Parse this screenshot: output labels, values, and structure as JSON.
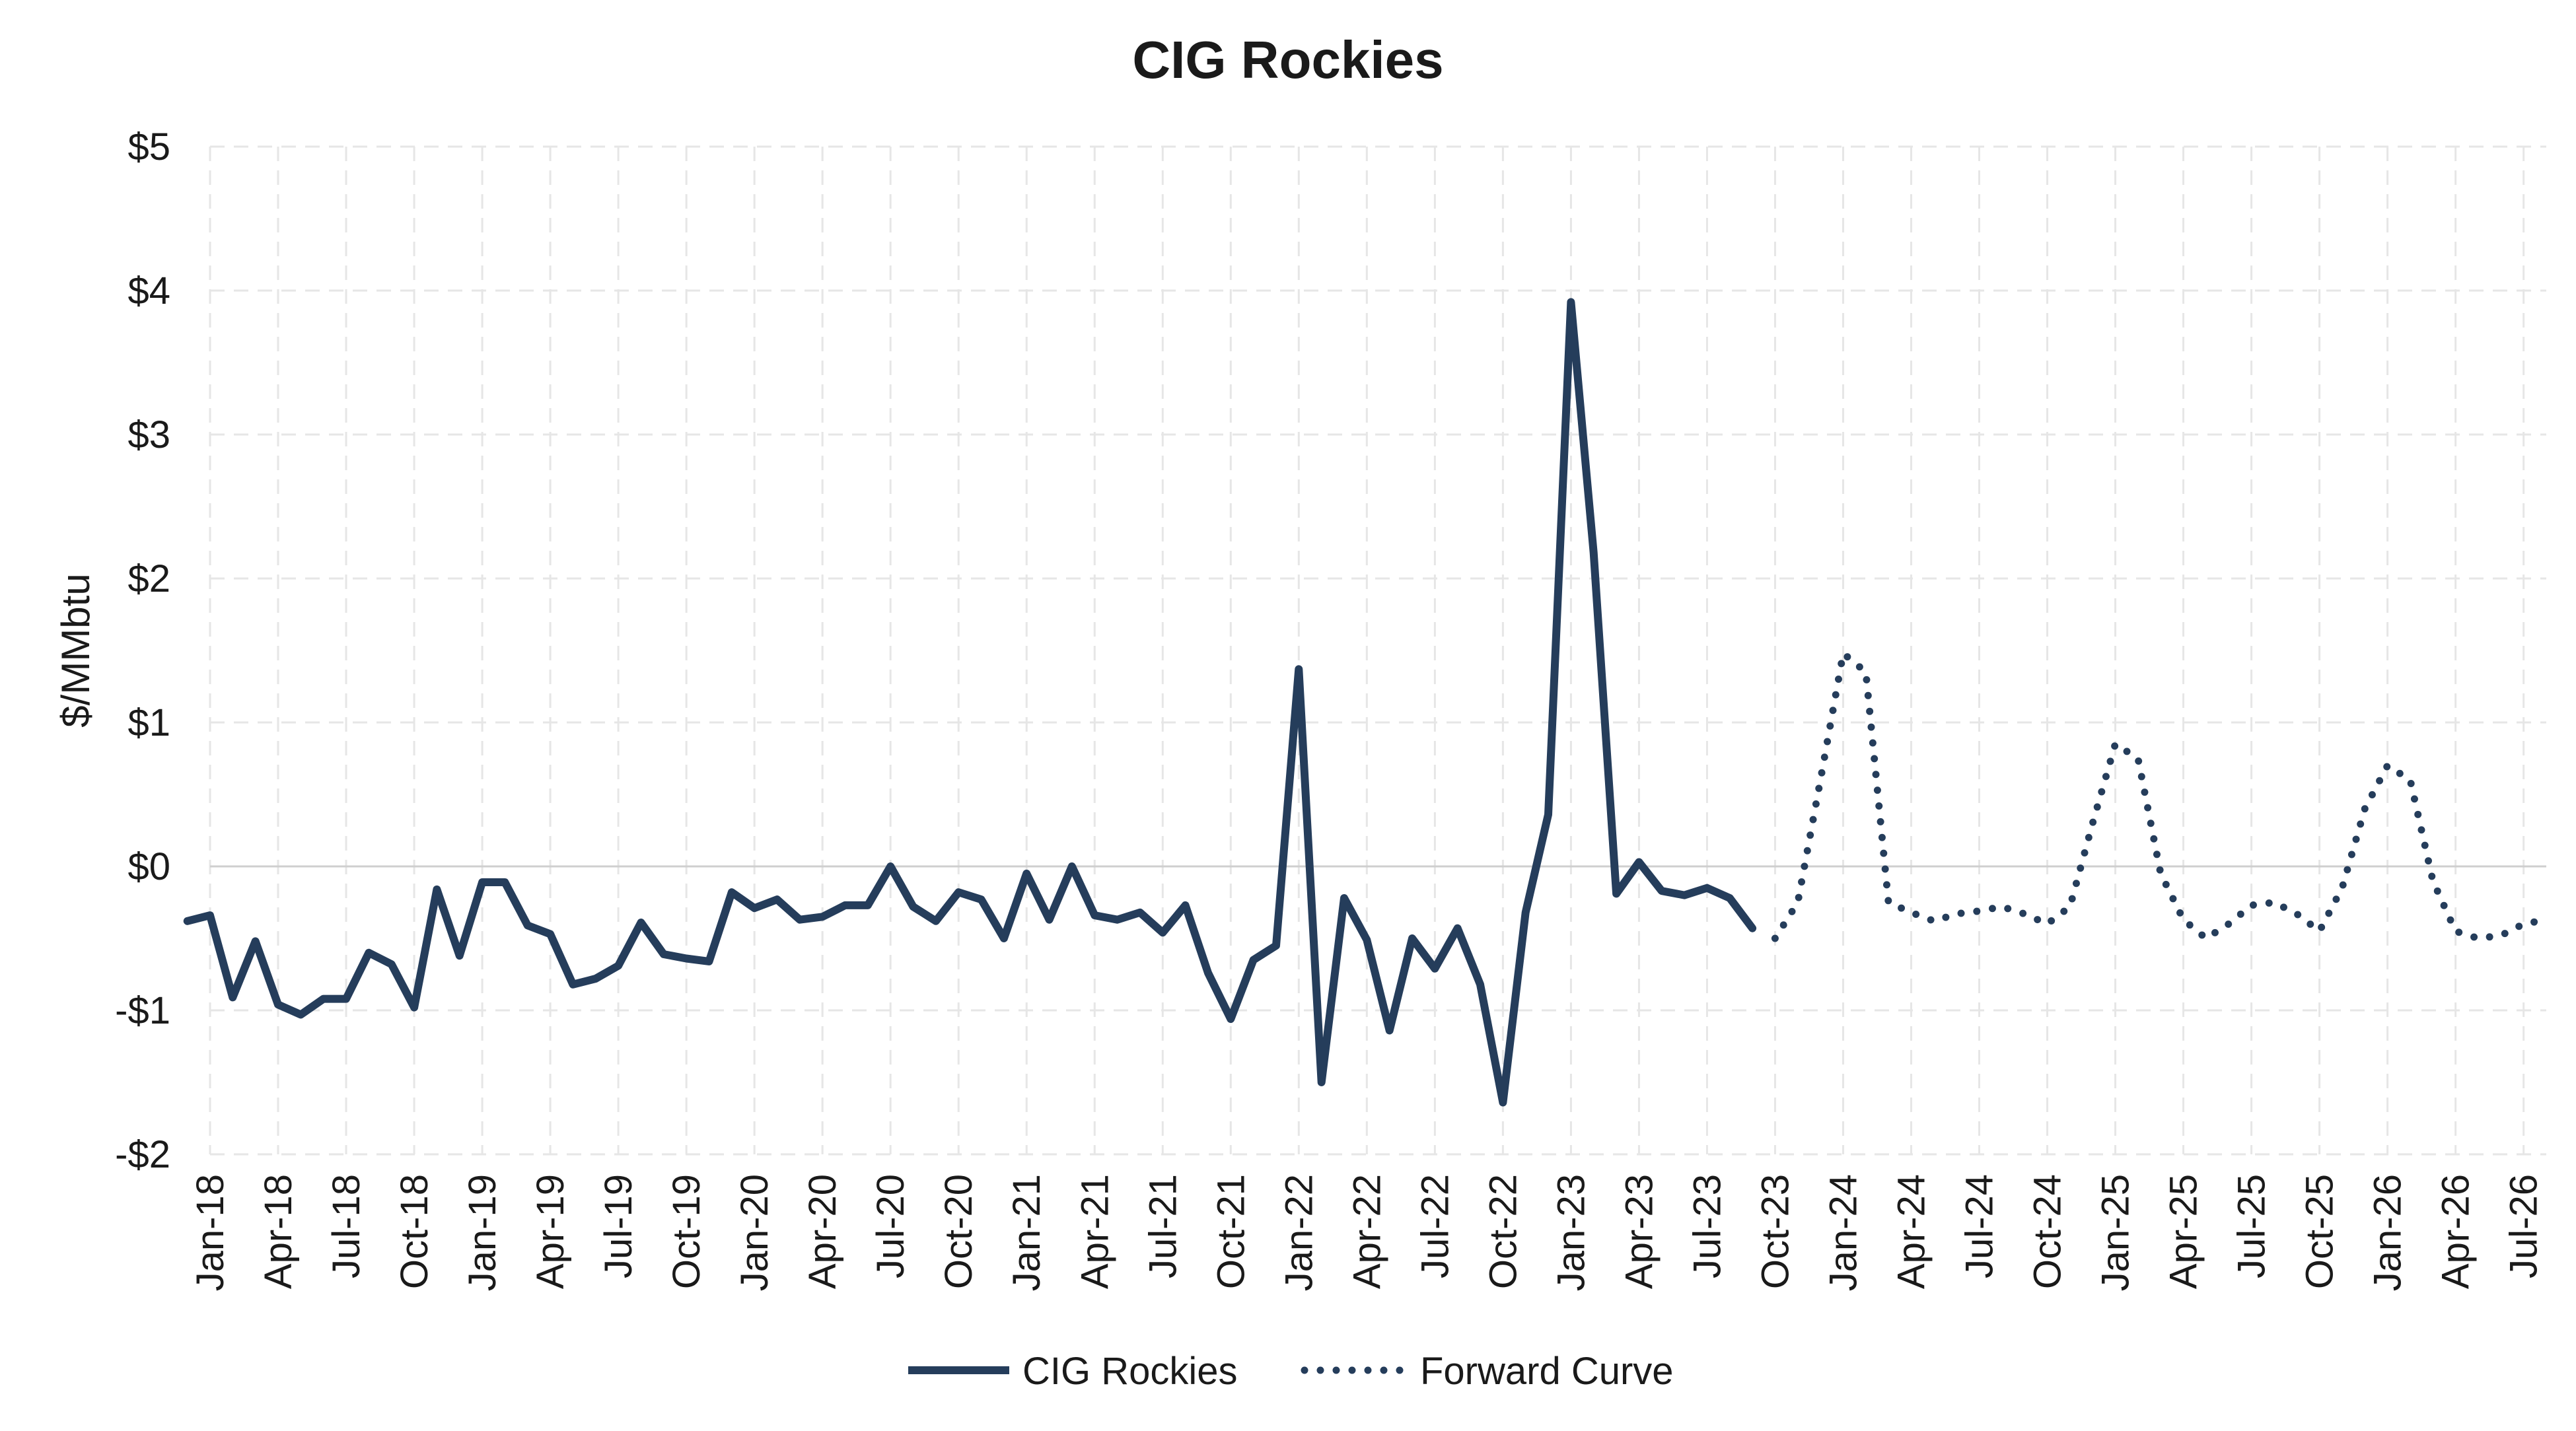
{
  "chart_data": {
    "type": "line",
    "title": "CIG Rockies",
    "ylabel": "$/MMbtu",
    "xlabel": "",
    "ylim": [
      -2,
      5
    ],
    "y_ticks": [
      5,
      4,
      3,
      2,
      1,
      0,
      -1,
      -2
    ],
    "y_tick_labels": [
      "$5",
      "$4",
      "$3",
      "$2",
      "$1",
      "$0",
      "-$1",
      "-$2"
    ],
    "x_range": [
      "Jan-18",
      "Aug-26"
    ],
    "x_tick_labels": [
      "Jan-18",
      "Apr-18",
      "Jul-18",
      "Oct-18",
      "Jan-19",
      "Apr-19",
      "Jul-19",
      "Oct-19",
      "Jan-20",
      "Apr-20",
      "Jul-20",
      "Oct-20",
      "Jan-21",
      "Apr-21",
      "Jul-21",
      "Oct-21",
      "Jan-22",
      "Apr-22",
      "Jul-22",
      "Oct-22",
      "Jan-23",
      "Apr-23",
      "Jul-23",
      "Oct-23",
      "Jan-24",
      "Apr-24",
      "Jul-24",
      "Oct-24",
      "Jan-25",
      "Apr-25",
      "Jul-25",
      "Oct-25",
      "Jan-26",
      "Apr-26",
      "Jul-26"
    ],
    "grid": true,
    "legend_position": "bottom-center",
    "series": [
      {
        "name": "CIG Rockies",
        "style": "solid",
        "color": "#253d5b",
        "x": [
          "Dec-17",
          "Jan-18",
          "Feb-18",
          "Mar-18",
          "Apr-18",
          "May-18",
          "Jun-18",
          "Jul-18",
          "Aug-18",
          "Sep-18",
          "Oct-18",
          "Nov-18",
          "Dec-18",
          "Jan-19",
          "Feb-19",
          "Mar-19",
          "Apr-19",
          "May-19",
          "Jun-19",
          "Jul-19",
          "Aug-19",
          "Sep-19",
          "Oct-19",
          "Nov-19",
          "Dec-19",
          "Jan-20",
          "Feb-20",
          "Mar-20",
          "Apr-20",
          "May-20",
          "Jun-20",
          "Jul-20",
          "Aug-20",
          "Sep-20",
          "Oct-20",
          "Nov-20",
          "Dec-20",
          "Jan-21",
          "Feb-21",
          "Mar-21",
          "Apr-21",
          "May-21",
          "Jun-21",
          "Jul-21",
          "Aug-21",
          "Sep-21",
          "Oct-21",
          "Nov-21",
          "Dec-21",
          "Jan-22",
          "Feb-22",
          "Mar-22",
          "Apr-22",
          "May-22",
          "Jun-22",
          "Jul-22",
          "Aug-22",
          "Sep-22",
          "Oct-22",
          "Nov-22",
          "Dec-22",
          "Jan-23",
          "Feb-23",
          "Mar-23",
          "Apr-23",
          "May-23",
          "Jun-23",
          "Jul-23",
          "Aug-23",
          "Sep-23"
        ],
        "values": [
          -0.38,
          -0.34,
          -0.91,
          -0.52,
          -0.96,
          -1.03,
          -0.92,
          -0.92,
          -0.6,
          -0.68,
          -0.98,
          -0.16,
          -0.62,
          -0.11,
          -0.11,
          -0.41,
          -0.47,
          -0.82,
          -0.78,
          -0.69,
          -0.39,
          -0.61,
          -0.64,
          -0.66,
          -0.18,
          -0.29,
          -0.23,
          -0.37,
          -0.35,
          -0.27,
          -0.27,
          0.0,
          -0.28,
          -0.38,
          -0.18,
          -0.23,
          -0.5,
          -0.05,
          -0.37,
          0.0,
          -0.34,
          -0.37,
          -0.32,
          -0.46,
          -0.27,
          -0.74,
          -1.06,
          -0.65,
          -0.55,
          1.37,
          -1.5,
          -0.22,
          -0.51,
          -1.14,
          -0.5,
          -0.71,
          -0.43,
          -0.82,
          -1.64,
          -0.32,
          0.36,
          3.92,
          2.18,
          -0.19,
          0.03,
          -0.17,
          -0.2,
          -0.15,
          -0.22,
          -0.43
        ]
      },
      {
        "name": "Forward Curve",
        "style": "dotted",
        "color": "#253d5b",
        "x": [
          "Oct-23",
          "Nov-23",
          "Dec-23",
          "Jan-24",
          "Feb-24",
          "Mar-24",
          "Apr-24",
          "May-24",
          "Jun-24",
          "Jul-24",
          "Aug-24",
          "Sep-24",
          "Oct-24",
          "Nov-24",
          "Dec-24",
          "Jan-25",
          "Feb-25",
          "Mar-25",
          "Apr-25",
          "May-25",
          "Jun-25",
          "Jul-25",
          "Aug-25",
          "Sep-25",
          "Oct-25",
          "Nov-25",
          "Dec-25",
          "Jan-26",
          "Feb-26",
          "Mar-26",
          "Apr-26",
          "May-26",
          "Jun-26",
          "Jul-26",
          "Aug-26"
        ],
        "values": [
          -0.5,
          -0.25,
          0.6,
          1.48,
          1.35,
          -0.25,
          -0.32,
          -0.38,
          -0.33,
          -0.31,
          -0.28,
          -0.33,
          -0.4,
          -0.28,
          0.3,
          0.85,
          0.75,
          -0.05,
          -0.37,
          -0.5,
          -0.4,
          -0.27,
          -0.25,
          -0.33,
          -0.45,
          -0.15,
          0.4,
          0.7,
          0.6,
          -0.1,
          -0.45,
          -0.5,
          -0.48,
          -0.4,
          -0.37
        ]
      }
    ]
  }
}
